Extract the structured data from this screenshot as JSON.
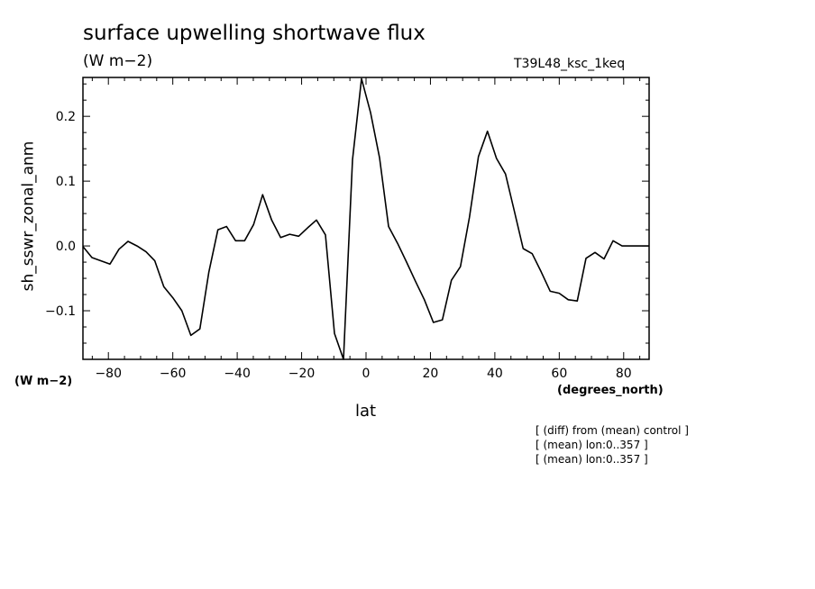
{
  "title": "surface upwelling shortwave flux",
  "units": "(W m−2)",
  "run_name": "T39L48_ksc_1keq",
  "notes": [
    "[ (diff) from (mean) control ]",
    "[ (mean) lon:0..357 ]",
    "[ (mean) lon:0..357 ]"
  ],
  "chart_data": {
    "type": "line",
    "title": "surface upwelling shortwave flux",
    "xlabel": "lat",
    "xunits": "(degrees_north)",
    "ylabel": "sh_sswr_zonal_anm",
    "yunits": "(W m−2)",
    "xlim": [
      -87.9,
      87.9
    ],
    "ylim": [
      -0.175,
      0.26
    ],
    "xticks": [
      -80,
      -60,
      -40,
      -20,
      0,
      20,
      40,
      60,
      80
    ],
    "xtick_labels": [
      "−80",
      "−60",
      "−40",
      "−20",
      "0",
      "20",
      "40",
      "60",
      "80"
    ],
    "yticks": [
      -0.1,
      0.0,
      0.1,
      0.2
    ],
    "ytick_labels": [
      "−0.1",
      "0.0",
      "0.1",
      "0.2"
    ],
    "grid": false,
    "series": [
      {
        "x": [
          -87.9,
          -85.1,
          -82.3,
          -79.5,
          -76.7,
          -73.9,
          -71.1,
          -68.3,
          -65.6,
          -62.8,
          -60.0,
          -57.2,
          -54.4,
          -51.6,
          -48.8,
          -46.0,
          -43.3,
          -40.5,
          -37.7,
          -34.9,
          -32.1,
          -29.3,
          -26.5,
          -23.7,
          -20.9,
          -18.1,
          -15.4,
          -12.6,
          -9.8,
          -7.0,
          -4.2,
          -1.4,
          1.4,
          4.2,
          7.0,
          9.8,
          12.6,
          15.4,
          18.1,
          20.9,
          23.7,
          26.5,
          29.3,
          32.1,
          34.9,
          37.7,
          40.5,
          43.3,
          46.0,
          48.8,
          51.6,
          54.4,
          57.2,
          60.0,
          62.8,
          65.6,
          68.3,
          71.1,
          73.9,
          76.7,
          79.5,
          82.3,
          85.1,
          87.9
        ],
        "y": [
          -0.001,
          -0.018,
          -0.023,
          -0.028,
          -0.005,
          0.007,
          0.0,
          -0.009,
          -0.023,
          -0.063,
          -0.08,
          -0.1,
          -0.138,
          -0.128,
          -0.04,
          0.025,
          0.03,
          0.008,
          0.008,
          0.033,
          0.079,
          0.04,
          0.013,
          0.018,
          0.015,
          0.028,
          0.04,
          0.017,
          -0.135,
          -0.175,
          0.133,
          0.258,
          0.206,
          0.136,
          0.03,
          0.004,
          -0.025,
          -0.055,
          -0.083,
          -0.118,
          -0.114,
          -0.053,
          -0.032,
          0.044,
          0.138,
          0.177,
          0.135,
          0.111,
          0.055,
          -0.004,
          -0.012,
          -0.04,
          -0.07,
          -0.073,
          -0.083,
          -0.085,
          -0.019,
          -0.01,
          -0.02,
          0.008,
          0.0,
          0.0,
          0.0,
          0.0
        ]
      }
    ]
  }
}
